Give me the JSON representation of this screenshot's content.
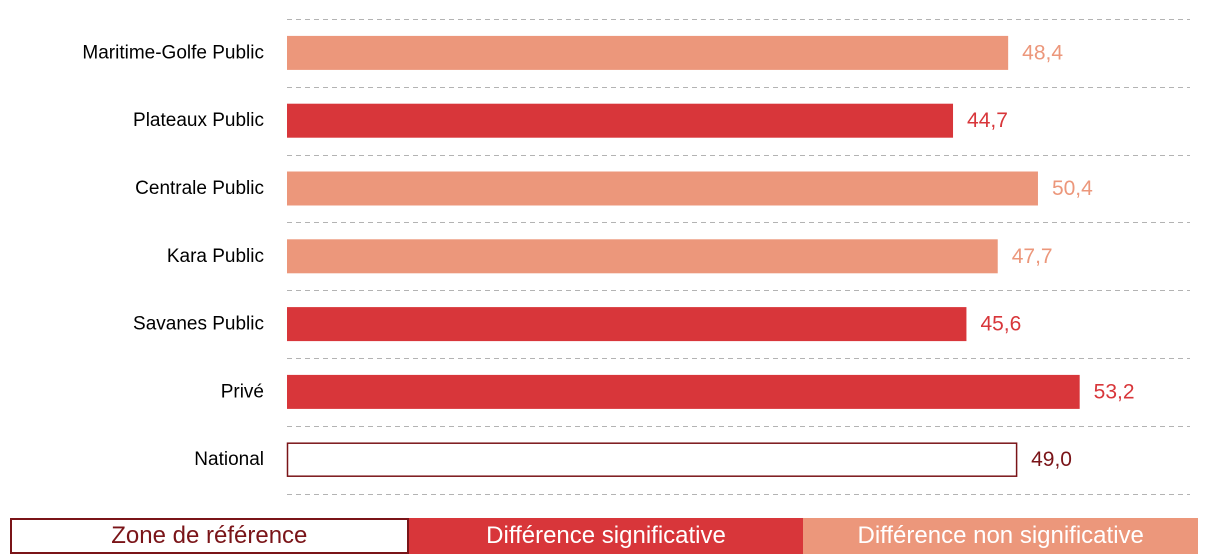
{
  "chart_data": {
    "type": "bar",
    "orientation": "horizontal",
    "categories": [
      "Maritime-Golfe Public",
      "Plateaux Public",
      "Centrale Public",
      "Kara Public",
      "Savanes Public",
      "Privé",
      "National"
    ],
    "values": [
      48.4,
      44.7,
      50.4,
      47.7,
      45.6,
      53.2,
      49.0
    ],
    "value_labels": [
      "48,4",
      "44,7",
      "50,4",
      "47,7",
      "45,6",
      "53,2",
      "49,0"
    ],
    "status": [
      "nonsig",
      "sig",
      "nonsig",
      "nonsig",
      "sig",
      "sig",
      "ref"
    ],
    "xlim": [
      0,
      58
    ],
    "grid": true,
    "legend_position": "bottom"
  },
  "legend": {
    "items": [
      {
        "key": "ref",
        "label": "Zone de référence"
      },
      {
        "key": "sig",
        "label": "Différence significative"
      },
      {
        "key": "nonsig",
        "label": "Différence non significative"
      }
    ]
  },
  "colors": {
    "ref_border": "#7a1418",
    "ref_text": "#7a1418",
    "sig": "#d8363a",
    "nonsig": "#ec977b",
    "grid": "#b3b3b3",
    "label": "#000000"
  }
}
